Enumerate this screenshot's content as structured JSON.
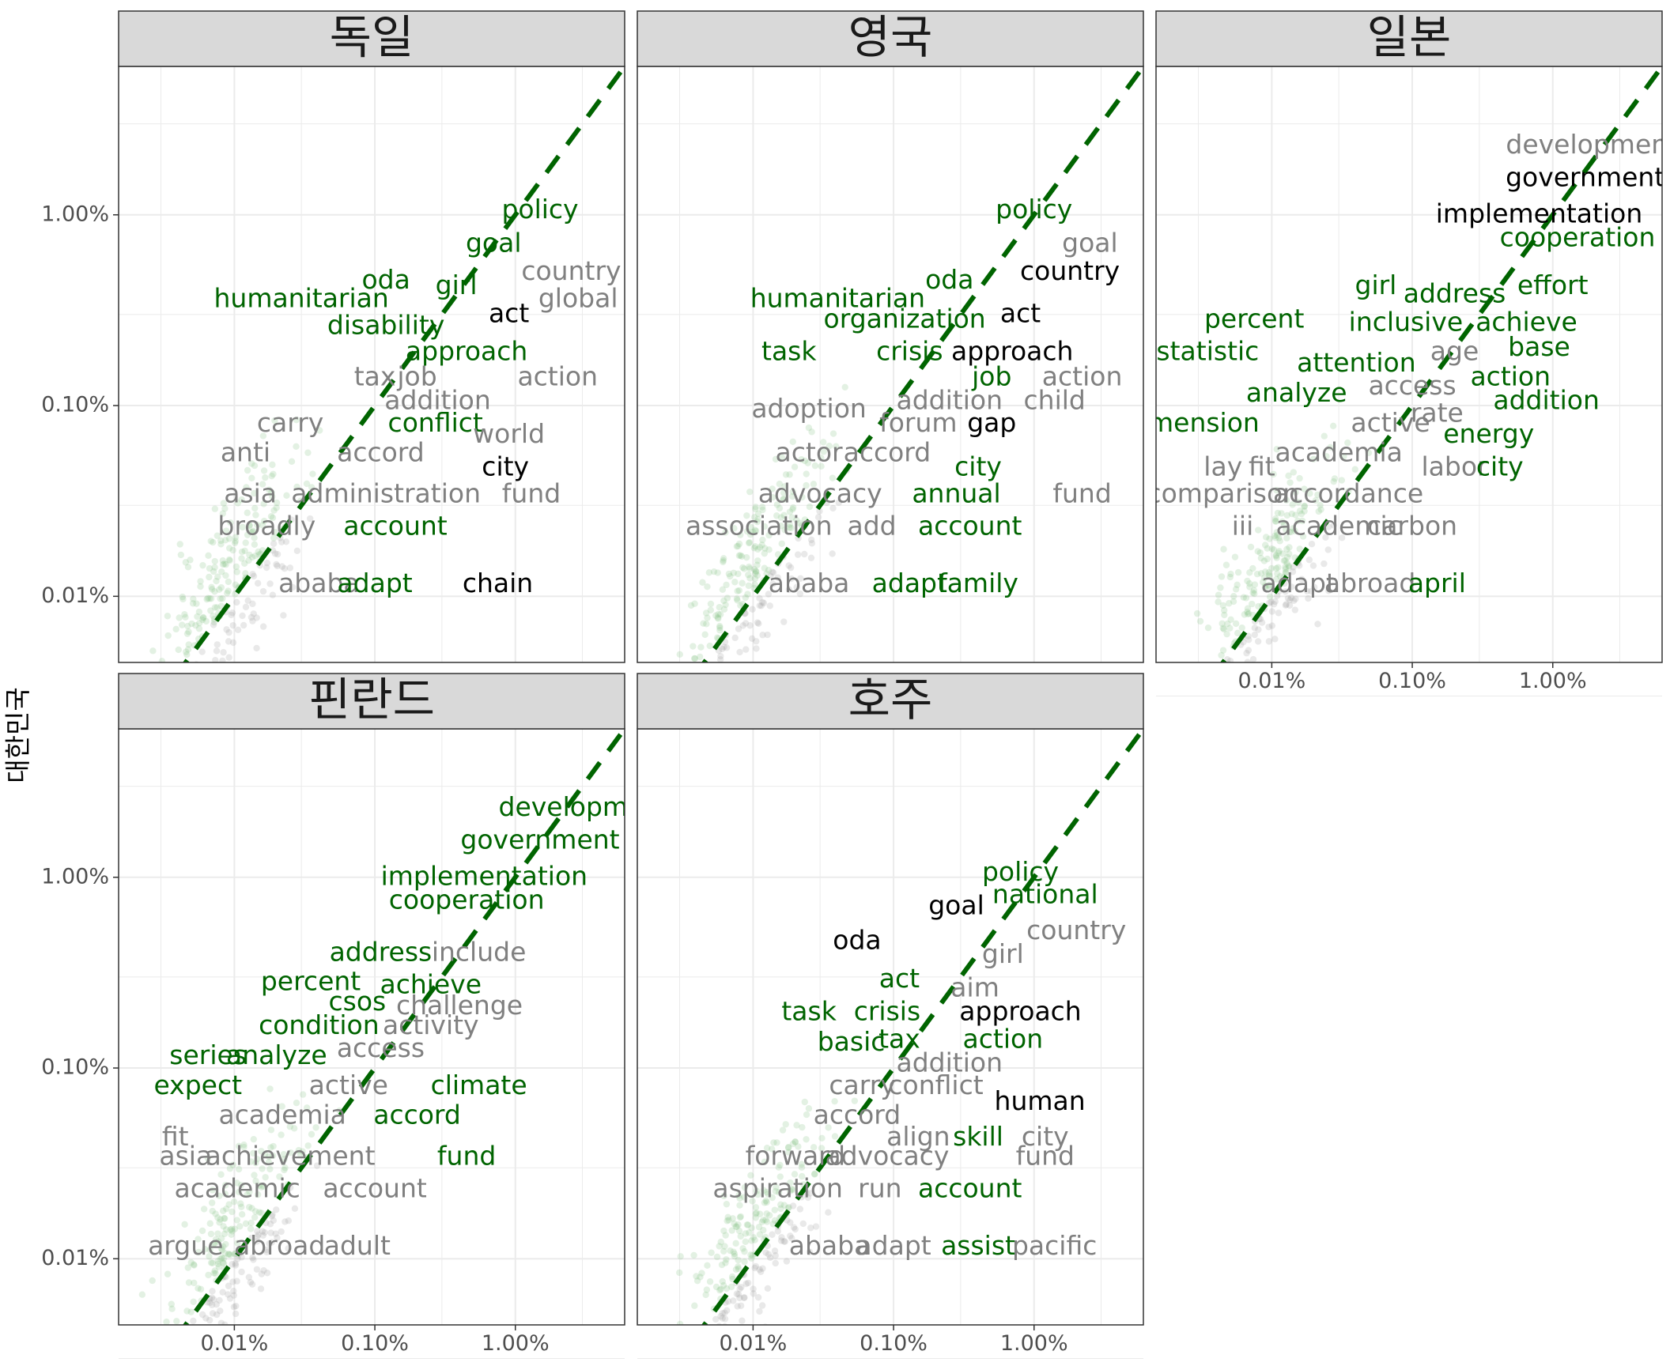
{
  "chart_data": {
    "type": "scatter",
    "x_scale": "log10",
    "y_scale": "log10",
    "ylabel": "대한민국",
    "xlim_percent": [
      0.0015,
      6
    ],
    "ylim_percent": [
      0.0045,
      6
    ],
    "x_ticks": [
      "0.01%",
      "0.10%",
      "1.00%"
    ],
    "y_ticks": [
      "0.01%",
      "0.10%",
      "1.00%"
    ],
    "reference_line": "y = x, dashed",
    "colors": {
      "ref_line": "#006400",
      "above": "#006400",
      "below": "#808080",
      "neutral": "#000000",
      "point": "#999999",
      "strip_fill": "#d9d9d9",
      "grid": "#ebebeb"
    },
    "panels": [
      {
        "title": "독일",
        "words": [
          {
            "t": "policy",
            "x": 1.5,
            "y": 1.05,
            "c": "above"
          },
          {
            "t": "goal",
            "x": 0.7,
            "y": 0.7,
            "c": "above"
          },
          {
            "t": "country",
            "x": 2.5,
            "y": 0.5,
            "c": "below"
          },
          {
            "t": "oda",
            "x": 0.12,
            "y": 0.45,
            "c": "above"
          },
          {
            "t": "girl",
            "x": 0.38,
            "y": 0.42,
            "c": "above"
          },
          {
            "t": "humanitarian",
            "x": 0.03,
            "y": 0.36,
            "c": "above"
          },
          {
            "t": "global",
            "x": 2.8,
            "y": 0.36,
            "c": "below"
          },
          {
            "t": "act",
            "x": 0.9,
            "y": 0.3,
            "c": "neutral"
          },
          {
            "t": "disability",
            "x": 0.12,
            "y": 0.26,
            "c": "above"
          },
          {
            "t": "approach",
            "x": 0.45,
            "y": 0.19,
            "c": "above"
          },
          {
            "t": "tax",
            "x": 0.1,
            "y": 0.14,
            "c": "below"
          },
          {
            "t": "job",
            "x": 0.2,
            "y": 0.14,
            "c": "below"
          },
          {
            "t": "action",
            "x": 2.0,
            "y": 0.14,
            "c": "below"
          },
          {
            "t": "addition",
            "x": 0.28,
            "y": 0.105,
            "c": "below"
          },
          {
            "t": "carry",
            "x": 0.025,
            "y": 0.08,
            "c": "below"
          },
          {
            "t": "conflict",
            "x": 0.27,
            "y": 0.08,
            "c": "above"
          },
          {
            "t": "world",
            "x": 0.9,
            "y": 0.07,
            "c": "below"
          },
          {
            "t": "anti",
            "x": 0.012,
            "y": 0.056,
            "c": "below"
          },
          {
            "t": "accord",
            "x": 0.11,
            "y": 0.056,
            "c": "below"
          },
          {
            "t": "city",
            "x": 0.85,
            "y": 0.047,
            "c": "neutral"
          },
          {
            "t": "asia",
            "x": 0.013,
            "y": 0.034,
            "c": "below"
          },
          {
            "t": "administration",
            "x": 0.12,
            "y": 0.034,
            "c": "below"
          },
          {
            "t": "fund",
            "x": 1.3,
            "y": 0.034,
            "c": "below"
          },
          {
            "t": "broadly",
            "x": 0.017,
            "y": 0.023,
            "c": "below"
          },
          {
            "t": "account",
            "x": 0.14,
            "y": 0.023,
            "c": "above"
          },
          {
            "t": "ababa",
            "x": 0.04,
            "y": 0.0115,
            "c": "below"
          },
          {
            "t": "adapt",
            "x": 0.1,
            "y": 0.0115,
            "c": "above"
          },
          {
            "t": "chain",
            "x": 0.75,
            "y": 0.0115,
            "c": "neutral"
          }
        ]
      },
      {
        "title": "영국",
        "words": [
          {
            "t": "policy",
            "x": 1.0,
            "y": 1.05,
            "c": "above"
          },
          {
            "t": "goal",
            "x": 2.5,
            "y": 0.7,
            "c": "below"
          },
          {
            "t": "country",
            "x": 1.8,
            "y": 0.5,
            "c": "neutral"
          },
          {
            "t": "oda",
            "x": 0.25,
            "y": 0.45,
            "c": "above"
          },
          {
            "t": "humanitarian",
            "x": 0.04,
            "y": 0.36,
            "c": "above"
          },
          {
            "t": "organization",
            "x": 0.12,
            "y": 0.28,
            "c": "above"
          },
          {
            "t": "act",
            "x": 0.8,
            "y": 0.3,
            "c": "neutral"
          },
          {
            "t": "task",
            "x": 0.018,
            "y": 0.19,
            "c": "above"
          },
          {
            "t": "crisis",
            "x": 0.13,
            "y": 0.19,
            "c": "above"
          },
          {
            "t": "approach",
            "x": 0.7,
            "y": 0.19,
            "c": "neutral"
          },
          {
            "t": "job",
            "x": 0.5,
            "y": 0.14,
            "c": "above"
          },
          {
            "t": "action",
            "x": 2.2,
            "y": 0.14,
            "c": "below"
          },
          {
            "t": "adoption",
            "x": 0.025,
            "y": 0.095,
            "c": "below"
          },
          {
            "t": "addition",
            "x": 0.25,
            "y": 0.105,
            "c": "below"
          },
          {
            "t": "child",
            "x": 1.4,
            "y": 0.105,
            "c": "below"
          },
          {
            "t": "forum",
            "x": 0.15,
            "y": 0.08,
            "c": "below"
          },
          {
            "t": "gap",
            "x": 0.5,
            "y": 0.08,
            "c": "neutral"
          },
          {
            "t": "actor",
            "x": 0.025,
            "y": 0.056,
            "c": "below"
          },
          {
            "t": "accord",
            "x": 0.09,
            "y": 0.056,
            "c": "below"
          },
          {
            "t": "city",
            "x": 0.4,
            "y": 0.047,
            "c": "above"
          },
          {
            "t": "advocacy",
            "x": 0.03,
            "y": 0.034,
            "c": "below"
          },
          {
            "t": "annual",
            "x": 0.28,
            "y": 0.034,
            "c": "above"
          },
          {
            "t": "fund",
            "x": 2.2,
            "y": 0.034,
            "c": "below"
          },
          {
            "t": "association",
            "x": 0.011,
            "y": 0.023,
            "c": "below"
          },
          {
            "t": "add",
            "x": 0.07,
            "y": 0.023,
            "c": "below"
          },
          {
            "t": "account",
            "x": 0.35,
            "y": 0.023,
            "c": "above"
          },
          {
            "t": "ababa",
            "x": 0.025,
            "y": 0.0115,
            "c": "below"
          },
          {
            "t": "adapt",
            "x": 0.13,
            "y": 0.0115,
            "c": "above"
          },
          {
            "t": "family",
            "x": 0.4,
            "y": 0.0115,
            "c": "above"
          }
        ]
      },
      {
        "title": "일본",
        "words": [
          {
            "t": "development",
            "x": 1.9,
            "y": 2.3,
            "c": "below"
          },
          {
            "t": "government",
            "x": 1.7,
            "y": 1.55,
            "c": "neutral"
          },
          {
            "t": "implementation",
            "x": 0.8,
            "y": 1.0,
            "c": "neutral"
          },
          {
            "t": "cooperation",
            "x": 1.5,
            "y": 0.75,
            "c": "above"
          },
          {
            "t": "girl",
            "x": 0.055,
            "y": 0.42,
            "c": "above"
          },
          {
            "t": "effort",
            "x": 1.0,
            "y": 0.42,
            "c": "above"
          },
          {
            "t": "address",
            "x": 0.2,
            "y": 0.38,
            "c": "above"
          },
          {
            "t": "percent",
            "x": 0.0075,
            "y": 0.28,
            "c": "above"
          },
          {
            "t": "inclusive",
            "x": 0.09,
            "y": 0.27,
            "c": "above"
          },
          {
            "t": "achieve",
            "x": 0.65,
            "y": 0.27,
            "c": "above"
          },
          {
            "t": "base",
            "x": 0.8,
            "y": 0.2,
            "c": "above"
          },
          {
            "t": "statistic",
            "x": 0.0035,
            "y": 0.19,
            "c": "above"
          },
          {
            "t": "age",
            "x": 0.2,
            "y": 0.19,
            "c": "below"
          },
          {
            "t": "attention",
            "x": 0.04,
            "y": 0.165,
            "c": "above"
          },
          {
            "t": "action",
            "x": 0.5,
            "y": 0.14,
            "c": "above"
          },
          {
            "t": "access",
            "x": 0.1,
            "y": 0.125,
            "c": "below"
          },
          {
            "t": "analyze",
            "x": 0.015,
            "y": 0.115,
            "c": "above"
          },
          {
            "t": "addition",
            "x": 0.9,
            "y": 0.105,
            "c": "above"
          },
          {
            "t": "rate",
            "x": 0.15,
            "y": 0.09,
            "c": "below"
          },
          {
            "t": "dimension",
            "x": 0.0027,
            "y": 0.08,
            "c": "above"
          },
          {
            "t": "active",
            "x": 0.07,
            "y": 0.08,
            "c": "below"
          },
          {
            "t": "energy",
            "x": 0.35,
            "y": 0.07,
            "c": "above"
          },
          {
            "t": "academia",
            "x": 0.03,
            "y": 0.056,
            "c": "below"
          },
          {
            "t": "lay",
            "x": 0.0045,
            "y": 0.047,
            "c": "below"
          },
          {
            "t": "fit",
            "x": 0.0085,
            "y": 0.047,
            "c": "below"
          },
          {
            "t": "labor",
            "x": 0.2,
            "y": 0.047,
            "c": "below"
          },
          {
            "t": "city",
            "x": 0.42,
            "y": 0.047,
            "c": "above"
          },
          {
            "t": "comparison",
            "x": 0.0045,
            "y": 0.034,
            "c": "below"
          },
          {
            "t": "accordance",
            "x": 0.035,
            "y": 0.034,
            "c": "below"
          },
          {
            "t": "iii",
            "x": 0.0062,
            "y": 0.023,
            "c": "below"
          },
          {
            "t": "academic",
            "x": 0.03,
            "y": 0.023,
            "c": "below"
          },
          {
            "t": "carbon",
            "x": 0.1,
            "y": 0.023,
            "c": "below"
          },
          {
            "t": "adapt",
            "x": 0.0155,
            "y": 0.0115,
            "c": "below"
          },
          {
            "t": "abroad",
            "x": 0.05,
            "y": 0.0115,
            "c": "below"
          },
          {
            "t": "april",
            "x": 0.15,
            "y": 0.0115,
            "c": "above"
          }
        ]
      },
      {
        "title": "핀란드",
        "words": [
          {
            "t": "developme",
            "x": 2.5,
            "y": 2.3,
            "c": "above"
          },
          {
            "t": "government",
            "x": 1.5,
            "y": 1.55,
            "c": "above"
          },
          {
            "t": "implementation",
            "x": 0.6,
            "y": 1.0,
            "c": "above"
          },
          {
            "t": "cooperation",
            "x": 0.45,
            "y": 0.75,
            "c": "above"
          },
          {
            "t": "address",
            "x": 0.11,
            "y": 0.4,
            "c": "above"
          },
          {
            "t": "include",
            "x": 0.55,
            "y": 0.4,
            "c": "below"
          },
          {
            "t": "percent",
            "x": 0.035,
            "y": 0.28,
            "c": "above"
          },
          {
            "t": "achieve",
            "x": 0.25,
            "y": 0.27,
            "c": "above"
          },
          {
            "t": "csos",
            "x": 0.075,
            "y": 0.22,
            "c": "above"
          },
          {
            "t": "challenge",
            "x": 0.4,
            "y": 0.21,
            "c": "below"
          },
          {
            "t": "condition",
            "x": 0.04,
            "y": 0.165,
            "c": "above"
          },
          {
            "t": "activity",
            "x": 0.25,
            "y": 0.165,
            "c": "below"
          },
          {
            "t": "access",
            "x": 0.11,
            "y": 0.125,
            "c": "below"
          },
          {
            "t": "series",
            "x": 0.0065,
            "y": 0.115,
            "c": "above"
          },
          {
            "t": "analyze",
            "x": 0.02,
            "y": 0.115,
            "c": "above"
          },
          {
            "t": "expect",
            "x": 0.0055,
            "y": 0.08,
            "c": "above"
          },
          {
            "t": "active",
            "x": 0.065,
            "y": 0.08,
            "c": "below"
          },
          {
            "t": "climate",
            "x": 0.55,
            "y": 0.08,
            "c": "above"
          },
          {
            "t": "academia",
            "x": 0.022,
            "y": 0.056,
            "c": "below"
          },
          {
            "t": "accord",
            "x": 0.2,
            "y": 0.056,
            "c": "above"
          },
          {
            "t": "fit",
            "x": 0.0038,
            "y": 0.043,
            "c": "below"
          },
          {
            "t": "asia",
            "x": 0.0045,
            "y": 0.034,
            "c": "below"
          },
          {
            "t": "achievement",
            "x": 0.025,
            "y": 0.034,
            "c": "below"
          },
          {
            "t": "fund",
            "x": 0.45,
            "y": 0.034,
            "c": "above"
          },
          {
            "t": "academic",
            "x": 0.0105,
            "y": 0.023,
            "c": "below"
          },
          {
            "t": "account",
            "x": 0.1,
            "y": 0.023,
            "c": "below"
          },
          {
            "t": "argue",
            "x": 0.0045,
            "y": 0.0115,
            "c": "below"
          },
          {
            "t": "abroad",
            "x": 0.021,
            "y": 0.0115,
            "c": "below"
          },
          {
            "t": "adult",
            "x": 0.075,
            "y": 0.0115,
            "c": "below"
          }
        ]
      },
      {
        "title": "호주",
        "words": [
          {
            "t": "policy",
            "x": 0.8,
            "y": 1.05,
            "c": "above"
          },
          {
            "t": "national",
            "x": 1.2,
            "y": 0.8,
            "c": "above"
          },
          {
            "t": "goal",
            "x": 0.28,
            "y": 0.7,
            "c": "neutral"
          },
          {
            "t": "country",
            "x": 2.0,
            "y": 0.52,
            "c": "below"
          },
          {
            "t": "oda",
            "x": 0.055,
            "y": 0.46,
            "c": "neutral"
          },
          {
            "t": "girl",
            "x": 0.6,
            "y": 0.39,
            "c": "below"
          },
          {
            "t": "act",
            "x": 0.11,
            "y": 0.29,
            "c": "above"
          },
          {
            "t": "aim",
            "x": 0.38,
            "y": 0.26,
            "c": "below"
          },
          {
            "t": "task",
            "x": 0.025,
            "y": 0.195,
            "c": "above"
          },
          {
            "t": "crisis",
            "x": 0.09,
            "y": 0.195,
            "c": "above"
          },
          {
            "t": "approach",
            "x": 0.8,
            "y": 0.195,
            "c": "neutral"
          },
          {
            "t": "basic",
            "x": 0.05,
            "y": 0.135,
            "c": "above"
          },
          {
            "t": "tax",
            "x": 0.11,
            "y": 0.14,
            "c": "above"
          },
          {
            "t": "action",
            "x": 0.6,
            "y": 0.14,
            "c": "above"
          },
          {
            "t": "addition",
            "x": 0.25,
            "y": 0.105,
            "c": "below"
          },
          {
            "t": "carry",
            "x": 0.06,
            "y": 0.08,
            "c": "below"
          },
          {
            "t": "conflict",
            "x": 0.2,
            "y": 0.08,
            "c": "below"
          },
          {
            "t": "human",
            "x": 1.1,
            "y": 0.066,
            "c": "neutral"
          },
          {
            "t": "accord",
            "x": 0.055,
            "y": 0.056,
            "c": "below"
          },
          {
            "t": "align",
            "x": 0.15,
            "y": 0.043,
            "c": "below"
          },
          {
            "t": "skill",
            "x": 0.4,
            "y": 0.043,
            "c": "above"
          },
          {
            "t": "city",
            "x": 1.2,
            "y": 0.043,
            "c": "below"
          },
          {
            "t": "forward",
            "x": 0.02,
            "y": 0.034,
            "c": "below"
          },
          {
            "t": "advocacy",
            "x": 0.09,
            "y": 0.034,
            "c": "below"
          },
          {
            "t": "fund",
            "x": 1.2,
            "y": 0.034,
            "c": "below"
          },
          {
            "t": "aspiration",
            "x": 0.015,
            "y": 0.023,
            "c": "below"
          },
          {
            "t": "run",
            "x": 0.08,
            "y": 0.023,
            "c": "below"
          },
          {
            "t": "account",
            "x": 0.35,
            "y": 0.023,
            "c": "above"
          },
          {
            "t": "ababa",
            "x": 0.035,
            "y": 0.0115,
            "c": "below"
          },
          {
            "t": "adapt",
            "x": 0.1,
            "y": 0.0115,
            "c": "below"
          },
          {
            "t": "assist",
            "x": 0.4,
            "y": 0.0115,
            "c": "above"
          },
          {
            "t": "pacific",
            "x": 1.4,
            "y": 0.0115,
            "c": "below"
          }
        ]
      }
    ]
  }
}
